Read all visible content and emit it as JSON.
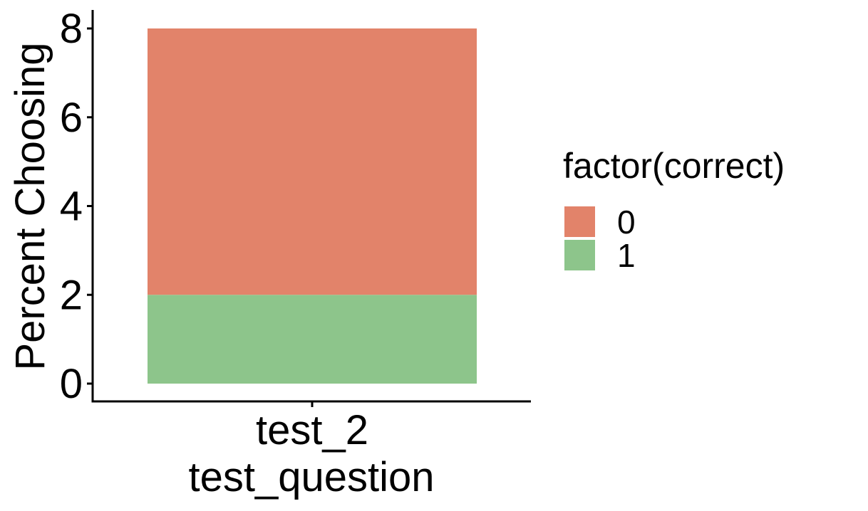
{
  "chart_data": {
    "type": "bar",
    "stacked": true,
    "categories": [
      "test_2"
    ],
    "series": [
      {
        "name": "0",
        "values": [
          6
        ],
        "color": "#E2836A"
      },
      {
        "name": "1",
        "values": [
          2
        ],
        "color": "#8DC58B"
      }
    ],
    "xlabel": "test_question",
    "ylabel": "Percent Choosing",
    "ylim": [
      0,
      8
    ],
    "yticks": [
      0,
      2,
      4,
      6,
      8
    ],
    "legend": {
      "title": "factor(correct)",
      "position": "right"
    },
    "grid": false
  }
}
